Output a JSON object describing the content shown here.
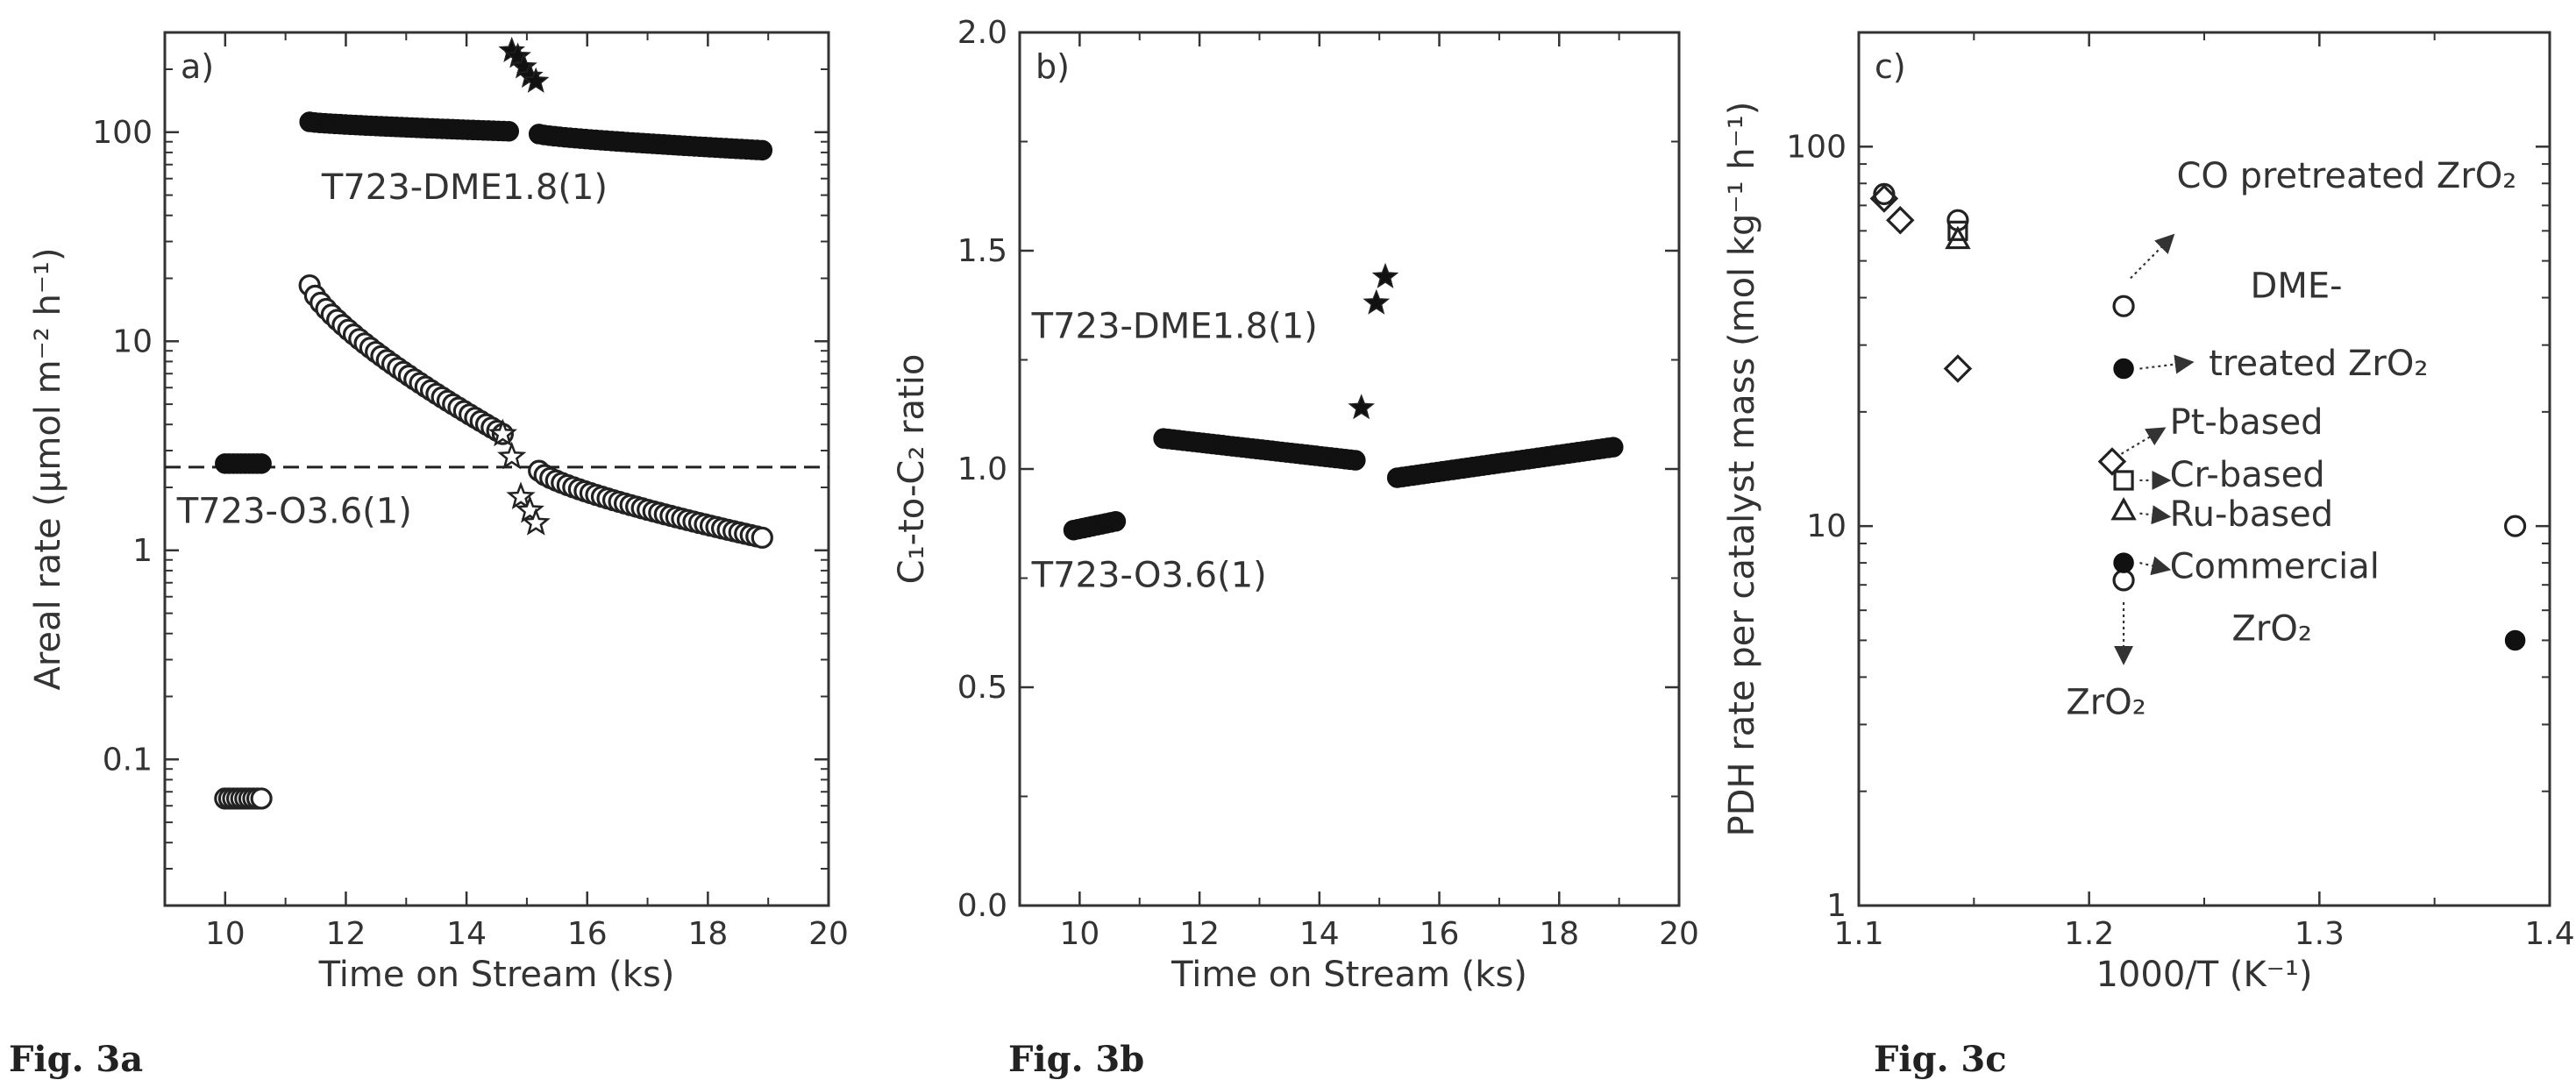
{
  "chart_data": [
    {
      "type": "scatter",
      "panel_label": "a)",
      "caption": "Fig. 3a",
      "xlabel": "Time on Stream (ks)",
      "ylabel": "Areal rate (μmol m⁻² h⁻¹)",
      "xlim": [
        9,
        20
      ],
      "ylim": [
        0.02,
        300
      ],
      "yscale": "log",
      "xticks": [
        10,
        12,
        14,
        16,
        18,
        20
      ],
      "yticks": [
        0.1,
        1,
        10,
        100
      ],
      "ytick_labels": [
        "0.1",
        "1",
        "10",
        "100"
      ],
      "reference_line_y": 2.5,
      "annotations": [
        {
          "text": "T723-DME1.8(1)",
          "x": 11.6,
          "y": 48
        },
        {
          "text": "T723-O3.6(1)",
          "x": 9.2,
          "y": 1.35
        }
      ],
      "series": [
        {
          "marker": "filled-circle",
          "segments": [
            {
              "x_start": 11.4,
              "x_end": 14.7,
              "y_start": 112,
              "y_end": 101,
              "n": 40
            },
            {
              "x_start": 15.2,
              "x_end": 18.9,
              "y_start": 98,
              "y_end": 82,
              "n": 44
            }
          ]
        },
        {
          "marker": "open-circle",
          "segments": [
            {
              "x_start": 11.4,
              "x_end": 14.6,
              "y_start": 18.5,
              "y_end": 3.6,
              "n": 36
            },
            {
              "x_start": 15.2,
              "x_end": 18.9,
              "y_start": 2.4,
              "y_end": 1.15,
              "n": 40
            }
          ]
        },
        {
          "marker": "filled-circle",
          "segments": [
            {
              "x_start": 10.0,
              "x_end": 10.6,
              "y_start": 2.6,
              "y_end": 2.6,
              "n": 10
            }
          ]
        },
        {
          "marker": "open-circle",
          "segments": [
            {
              "x_start": 10.0,
              "x_end": 10.6,
              "y_start": 0.065,
              "y_end": 0.065,
              "n": 10
            }
          ]
        },
        {
          "marker": "filled-star",
          "points": [
            [
              14.75,
              245
            ],
            [
              14.85,
              230
            ],
            [
              14.95,
              205
            ],
            [
              15.05,
              185
            ],
            [
              15.15,
              175
            ]
          ]
        },
        {
          "marker": "open-star",
          "points": [
            [
              14.6,
              3.6
            ],
            [
              14.75,
              2.8
            ],
            [
              14.9,
              1.8
            ],
            [
              15.05,
              1.55
            ],
            [
              15.15,
              1.35
            ]
          ]
        }
      ]
    },
    {
      "type": "scatter",
      "panel_label": "b)",
      "caption": "Fig. 3b",
      "xlabel": "Time on Stream (ks)",
      "ylabel": "C₁-to-C₂ ratio",
      "xlim": [
        9,
        20
      ],
      "ylim": [
        0.0,
        2.0
      ],
      "xticks": [
        10,
        12,
        14,
        16,
        18,
        20
      ],
      "yticks": [
        0.0,
        0.5,
        1.0,
        1.5,
        2.0
      ],
      "ytick_labels": [
        "0.0",
        "0.5",
        "1.0",
        "1.5",
        "2.0"
      ],
      "annotations": [
        {
          "text": "T723-DME1.8(1)",
          "x": 9.2,
          "y": 1.3
        },
        {
          "text": "T723-O3.6(1)",
          "x": 9.2,
          "y": 0.73
        }
      ],
      "series": [
        {
          "marker": "filled-circle",
          "segments": [
            {
              "x_start": 9.9,
              "x_end": 10.6,
              "y_start": 0.86,
              "y_end": 0.88,
              "n": 10
            },
            {
              "x_start": 11.4,
              "x_end": 14.6,
              "y_start": 1.07,
              "y_end": 1.02,
              "n": 40
            },
            {
              "x_start": 15.3,
              "x_end": 18.9,
              "y_start": 0.98,
              "y_end": 1.05,
              "n": 44
            }
          ]
        },
        {
          "marker": "filled-star",
          "points": [
            [
              14.7,
              1.14
            ],
            [
              14.95,
              1.38
            ],
            [
              15.1,
              1.44
            ]
          ]
        }
      ]
    },
    {
      "type": "scatter",
      "panel_label": "c)",
      "caption": "Fig. 3c",
      "xlabel": "1000/T (K⁻¹)",
      "ylabel": "PDH rate per catalyst mass (mol kg⁻¹ h⁻¹)",
      "xlim": [
        1.1,
        1.4
      ],
      "ylim": [
        1,
        200
      ],
      "yscale": "log",
      "xticks": [
        1.1,
        1.2,
        1.3,
        1.4
      ],
      "xtick_labels": [
        "1.1",
        "1.2",
        "1.3",
        "1.4"
      ],
      "yticks": [
        1,
        10,
        100
      ],
      "ytick_labels": [
        "1",
        "10",
        "100"
      ],
      "annotations": [
        {
          "text": "CO pretreated ZrO₂",
          "x": 1.238,
          "y": 78
        },
        {
          "text": "DME-",
          "x": 1.27,
          "y": 40
        },
        {
          "text": "treated ZrO₂",
          "x": 1.252,
          "y": 25
        },
        {
          "text": "Pt-based",
          "x": 1.235,
          "y": 17.5
        },
        {
          "text": "Cr-based",
          "x": 1.235,
          "y": 12.7
        },
        {
          "text": "Ru-based",
          "x": 1.235,
          "y": 10.0
        },
        {
          "text": "Commercial",
          "x": 1.235,
          "y": 7.3
        },
        {
          "text": "ZrO₂",
          "x": 1.262,
          "y": 5.0
        },
        {
          "text": "ZrO₂",
          "x": 1.19,
          "y": 3.2
        }
      ],
      "series": [
        {
          "marker": "open-circle",
          "points": [
            [
              1.111,
              75
            ],
            [
              1.143,
              64
            ],
            [
              1.215,
              38
            ],
            [
              1.215,
              7.2
            ],
            [
              1.385,
              10
            ]
          ]
        },
        {
          "marker": "filled-circle",
          "points": [
            [
              1.215,
              26
            ],
            [
              1.215,
              8.0
            ],
            [
              1.385,
              5.0
            ]
          ]
        },
        {
          "marker": "open-diamond",
          "points": [
            [
              1.111,
              73
            ],
            [
              1.118,
              64
            ],
            [
              1.143,
              26
            ],
            [
              1.21,
              14.8
            ]
          ]
        },
        {
          "marker": "open-triangle",
          "points": [
            [
              1.143,
              57
            ],
            [
              1.215,
              11
            ]
          ]
        },
        {
          "marker": "open-square",
          "points": [
            [
              1.143,
              60
            ],
            [
              1.215,
              13.2
            ]
          ]
        }
      ]
    }
  ]
}
